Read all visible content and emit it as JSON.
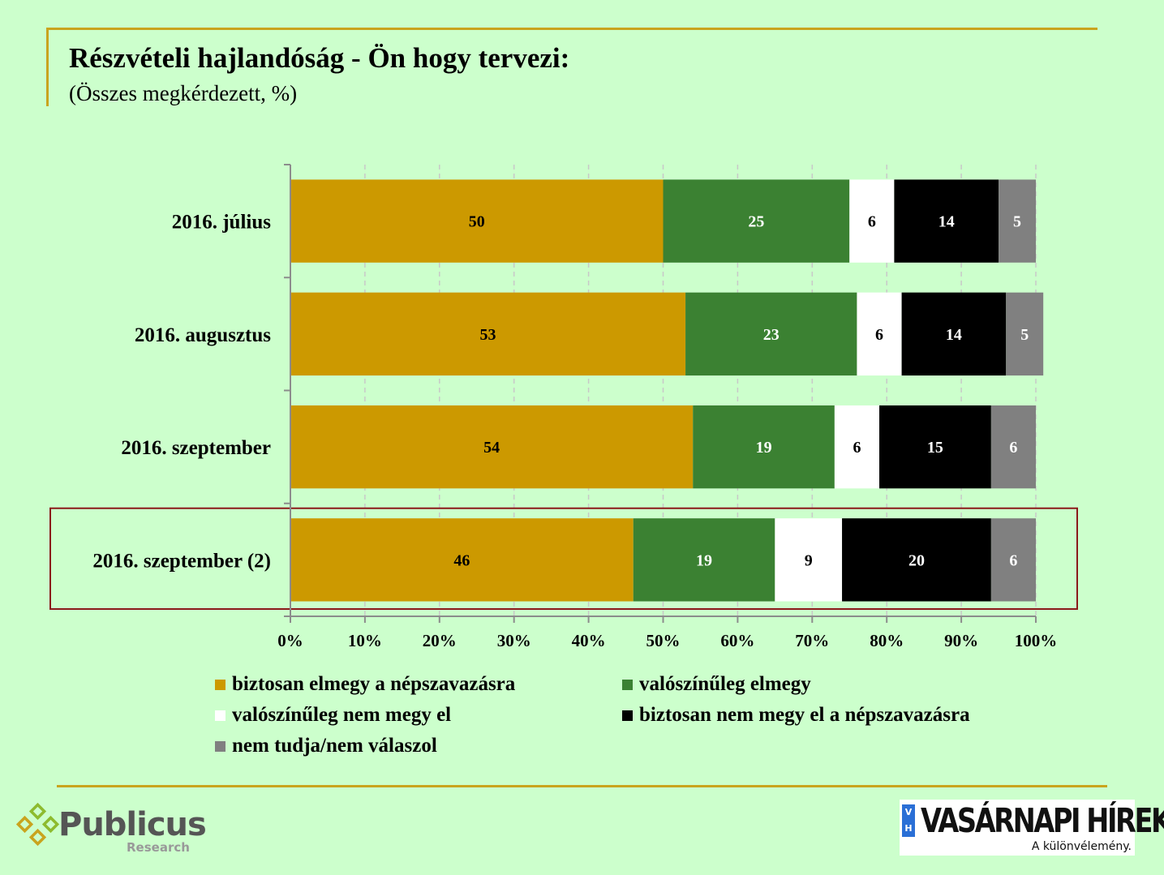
{
  "title": "Részvételi hajlandóság - Ön hogy tervezi:",
  "subtitle": "(Összes megkérdezett, %)",
  "chart_data": {
    "type": "bar",
    "orientation": "horizontal",
    "stacked": true,
    "categories": [
      "2016. július",
      "2016. augusztus",
      "2016. szeptember",
      "2016. szeptember (2)"
    ],
    "series": [
      {
        "name": "biztosan elmegy a népszavazásra",
        "color": "#cc9900",
        "label_color": "#000000",
        "values": [
          50,
          53,
          54,
          46
        ]
      },
      {
        "name": "valószínűleg elmegy",
        "color": "#3b8132",
        "label_color": "#ffffff",
        "values": [
          25,
          23,
          19,
          19
        ]
      },
      {
        "name": "valószínűleg nem megy el",
        "color": "#ffffff",
        "label_color": "#000000",
        "values": [
          6,
          6,
          6,
          9
        ]
      },
      {
        "name": "biztosan nem megy el a népszavazásra",
        "color": "#000000",
        "label_color": "#ffffff",
        "values": [
          14,
          14,
          15,
          20
        ]
      },
      {
        "name": "nem tudja/nem válaszol",
        "color": "#808080",
        "label_color": "#ffffff",
        "values": [
          5,
          5,
          6,
          6
        ]
      }
    ],
    "xlim": [
      0,
      100
    ],
    "x_ticks": [
      "0%",
      "10%",
      "20%",
      "30%",
      "40%",
      "50%",
      "60%",
      "70%",
      "80%",
      "90%",
      "100%"
    ],
    "grid": "vertical-dashed",
    "highlighted_category": "2016. szeptember (2)",
    "highlight_color": "#8b1a1a",
    "legend_position": "bottom"
  },
  "logos": {
    "publicus": {
      "name": "Publicus",
      "sub": "Research"
    },
    "vasarnapi": {
      "badge": "VH",
      "name": "VASÁRNAPI HÍREK",
      "tagline": "A különvélemény."
    }
  }
}
